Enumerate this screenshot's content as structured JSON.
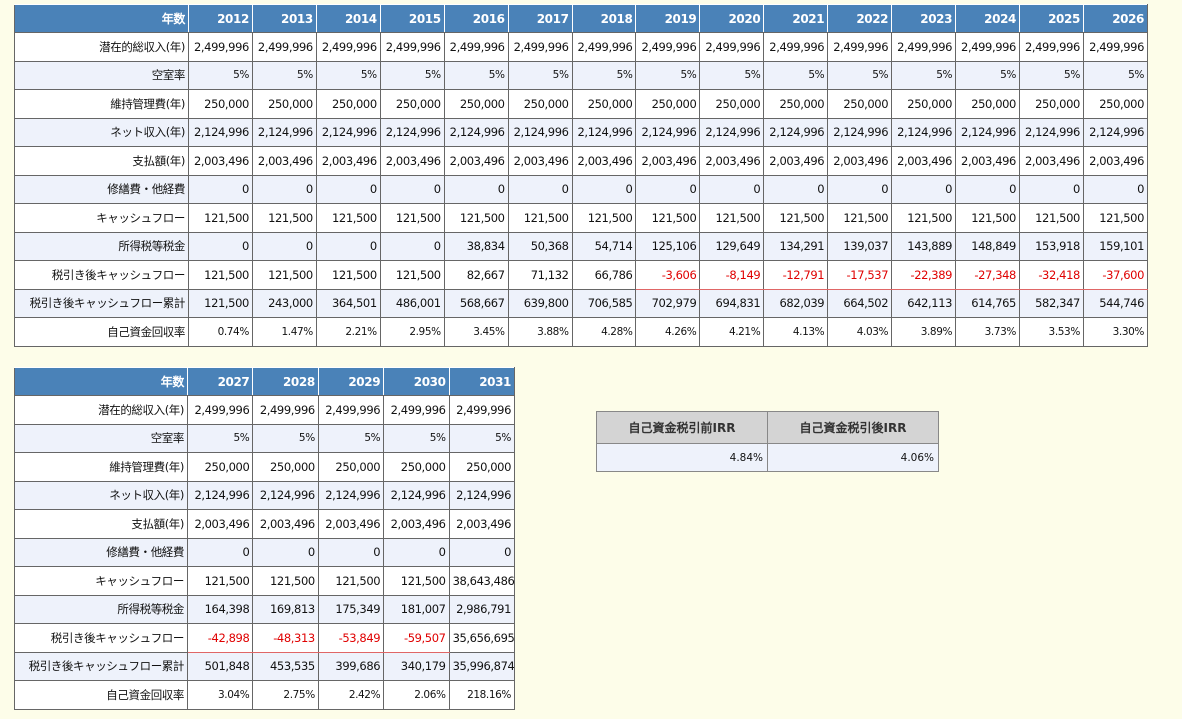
{
  "table1": {
    "header_label": "年数",
    "years": [
      "2012",
      "2013",
      "2014",
      "2015",
      "2016",
      "2017",
      "2018",
      "2019",
      "2020",
      "2021",
      "2022",
      "2023",
      "2024",
      "2025",
      "2026"
    ],
    "rows": [
      {
        "label": "潜在的総収入(年)",
        "values": [
          "2,499,996",
          "2,499,996",
          "2,499,996",
          "2,499,996",
          "2,499,996",
          "2,499,996",
          "2,499,996",
          "2,499,996",
          "2,499,996",
          "2,499,996",
          "2,499,996",
          "2,499,996",
          "2,499,996",
          "2,499,996",
          "2,499,996"
        ]
      },
      {
        "label": "空室率",
        "values": [
          "5%",
          "5%",
          "5%",
          "5%",
          "5%",
          "5%",
          "5%",
          "5%",
          "5%",
          "5%",
          "5%",
          "5%",
          "5%",
          "5%",
          "5%"
        ]
      },
      {
        "label": "維持管理費(年)",
        "values": [
          "250,000",
          "250,000",
          "250,000",
          "250,000",
          "250,000",
          "250,000",
          "250,000",
          "250,000",
          "250,000",
          "250,000",
          "250,000",
          "250,000",
          "250,000",
          "250,000",
          "250,000"
        ]
      },
      {
        "label": "ネット収入(年)",
        "values": [
          "2,124,996",
          "2,124,996",
          "2,124,996",
          "2,124,996",
          "2,124,996",
          "2,124,996",
          "2,124,996",
          "2,124,996",
          "2,124,996",
          "2,124,996",
          "2,124,996",
          "2,124,996",
          "2,124,996",
          "2,124,996",
          "2,124,996"
        ]
      },
      {
        "label": "支払額(年)",
        "values": [
          "2,003,496",
          "2,003,496",
          "2,003,496",
          "2,003,496",
          "2,003,496",
          "2,003,496",
          "2,003,496",
          "2,003,496",
          "2,003,496",
          "2,003,496",
          "2,003,496",
          "2,003,496",
          "2,003,496",
          "2,003,496",
          "2,003,496"
        ]
      },
      {
        "label": "修繕費・他経費",
        "values": [
          "0",
          "0",
          "0",
          "0",
          "0",
          "0",
          "0",
          "0",
          "0",
          "0",
          "0",
          "0",
          "0",
          "0",
          "0"
        ]
      },
      {
        "label": "キャッシュフロー",
        "values": [
          "121,500",
          "121,500",
          "121,500",
          "121,500",
          "121,500",
          "121,500",
          "121,500",
          "121,500",
          "121,500",
          "121,500",
          "121,500",
          "121,500",
          "121,500",
          "121,500",
          "121,500"
        ]
      },
      {
        "label": "所得税等税金",
        "values": [
          "0",
          "0",
          "0",
          "0",
          "38,834",
          "50,368",
          "54,714",
          "125,106",
          "129,649",
          "134,291",
          "139,037",
          "143,889",
          "148,849",
          "153,918",
          "159,101"
        ]
      },
      {
        "label": "税引き後キャッシュフロー",
        "values": [
          "121,500",
          "121,500",
          "121,500",
          "121,500",
          "82,667",
          "71,132",
          "66,786",
          "-3,606",
          "-8,149",
          "-12,791",
          "-17,537",
          "-22,389",
          "-27,348",
          "-32,418",
          "-37,600"
        ]
      },
      {
        "label": "税引き後キャッシュフロー累計",
        "values": [
          "121,500",
          "243,000",
          "364,501",
          "486,001",
          "568,667",
          "639,800",
          "706,585",
          "702,979",
          "694,831",
          "682,039",
          "664,502",
          "642,113",
          "614,765",
          "582,347",
          "544,746"
        ]
      },
      {
        "label": "自己資金回収率",
        "values": [
          "0.74%",
          "1.47%",
          "2.21%",
          "2.95%",
          "3.45%",
          "3.88%",
          "4.28%",
          "4.26%",
          "4.21%",
          "4.13%",
          "4.03%",
          "3.89%",
          "3.73%",
          "3.53%",
          "3.30%"
        ]
      }
    ]
  },
  "table2": {
    "header_label": "年数",
    "years": [
      "2027",
      "2028",
      "2029",
      "2030",
      "2031"
    ],
    "rows": [
      {
        "label": "潜在的総収入(年)",
        "values": [
          "2,499,996",
          "2,499,996",
          "2,499,996",
          "2,499,996",
          "2,499,996"
        ]
      },
      {
        "label": "空室率",
        "values": [
          "5%",
          "5%",
          "5%",
          "5%",
          "5%"
        ]
      },
      {
        "label": "維持管理費(年)",
        "values": [
          "250,000",
          "250,000",
          "250,000",
          "250,000",
          "250,000"
        ]
      },
      {
        "label": "ネット収入(年)",
        "values": [
          "2,124,996",
          "2,124,996",
          "2,124,996",
          "2,124,996",
          "2,124,996"
        ]
      },
      {
        "label": "支払額(年)",
        "values": [
          "2,003,496",
          "2,003,496",
          "2,003,496",
          "2,003,496",
          "2,003,496"
        ]
      },
      {
        "label": "修繕費・他経費",
        "values": [
          "0",
          "0",
          "0",
          "0",
          "0"
        ]
      },
      {
        "label": "キャッシュフロー",
        "values": [
          "121,500",
          "121,500",
          "121,500",
          "121,500",
          "38,643,486"
        ]
      },
      {
        "label": "所得税等税金",
        "values": [
          "164,398",
          "169,813",
          "175,349",
          "181,007",
          "2,986,791"
        ]
      },
      {
        "label": "税引き後キャッシュフロー",
        "values": [
          "-42,898",
          "-48,313",
          "-53,849",
          "-59,507",
          "35,656,695"
        ]
      },
      {
        "label": "税引き後キャッシュフロー累計",
        "values": [
          "501,848",
          "453,535",
          "399,686",
          "340,179",
          "35,996,874"
        ]
      },
      {
        "label": "自己資金回収率",
        "values": [
          "3.04%",
          "2.75%",
          "2.42%",
          "2.06%",
          "218.16%"
        ]
      }
    ]
  },
  "irr": {
    "before_tax_label": "自己資金税引前IRR",
    "after_tax_label": "自己資金税引後IRR",
    "before_tax_value": "4.84%",
    "after_tax_value": "4.06%"
  },
  "colors": {
    "header_bg": "#4a82b8",
    "page_bg": "#fdfde9",
    "negative": "#e00000",
    "alt_row": "#eef2fb"
  }
}
